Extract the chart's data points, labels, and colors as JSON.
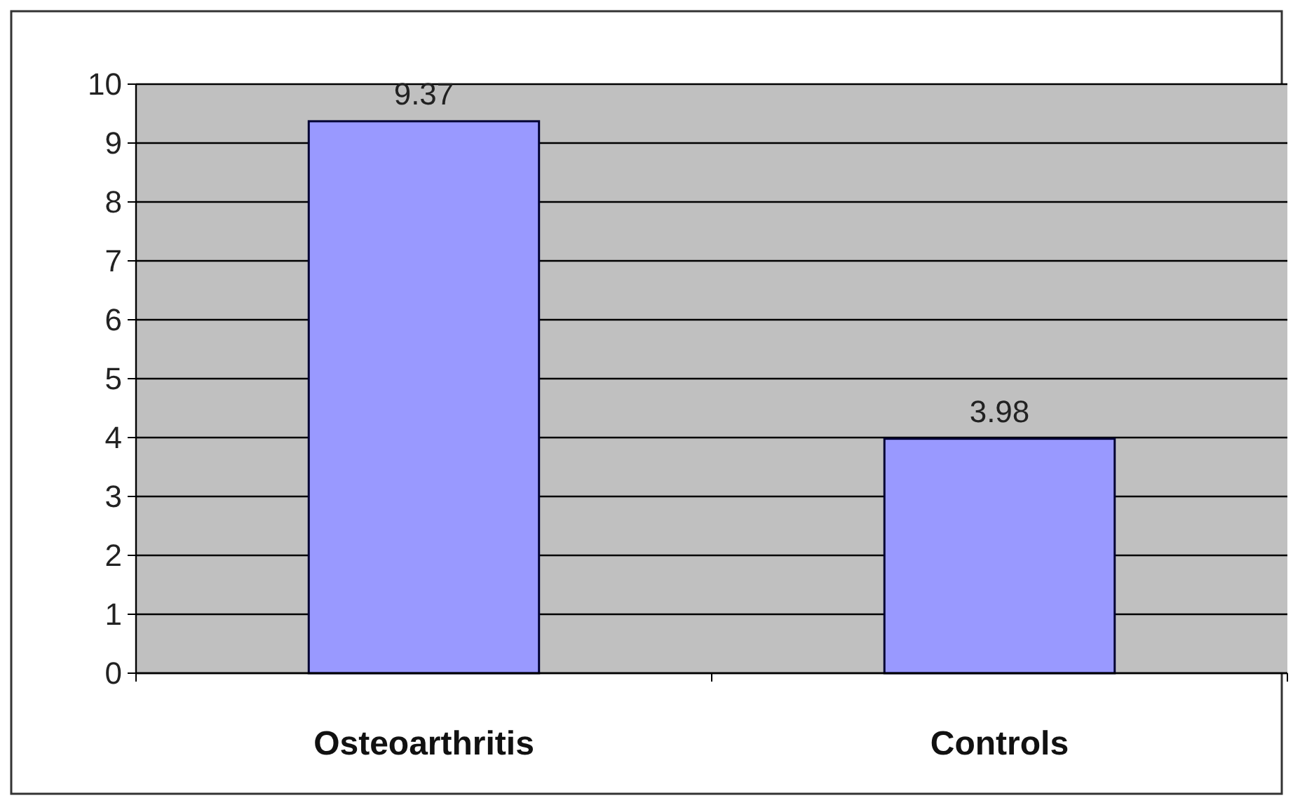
{
  "chart_data": {
    "type": "bar",
    "categories": [
      "Osteoarthritis",
      "Controls"
    ],
    "values": [
      9.37,
      3.98
    ],
    "color": "#9999ff",
    "ylim": [
      0,
      10
    ],
    "yticks": [
      0,
      1,
      2,
      3,
      4,
      5,
      6,
      7,
      8,
      9,
      10
    ],
    "grid": "y",
    "data_labels": true
  }
}
